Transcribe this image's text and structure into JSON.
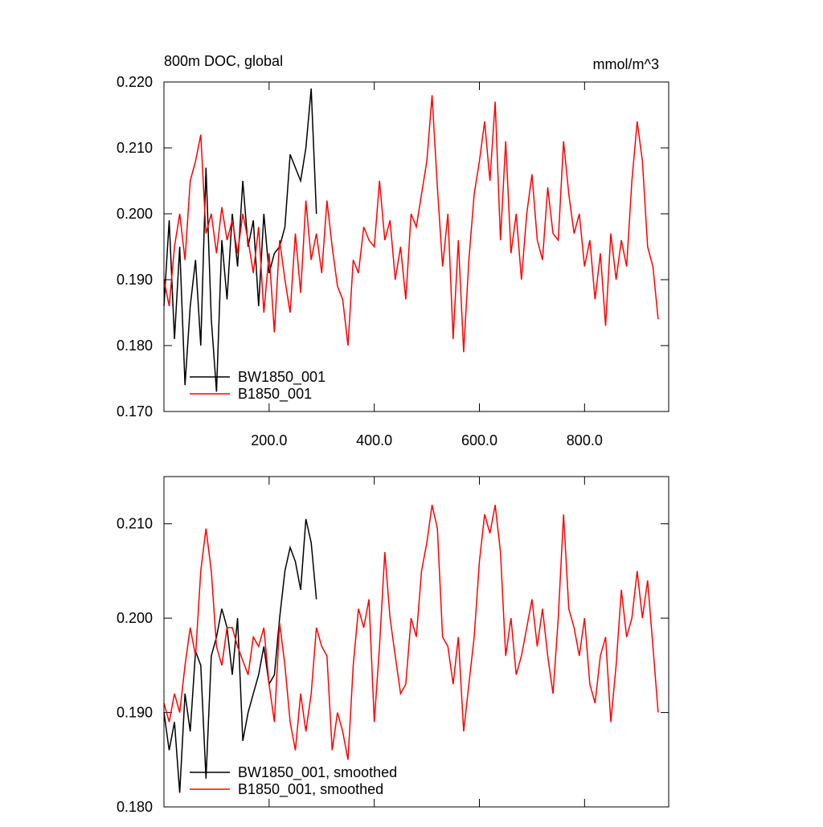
{
  "chart_data": [
    {
      "type": "line",
      "title": "800m DOC, global",
      "units": "mmol/m^3",
      "xlim": [
        0,
        960
      ],
      "xticks": [
        {
          "value": 200,
          "label": "200.0"
        },
        {
          "value": 400,
          "label": "400.0"
        },
        {
          "value": 600,
          "label": "600.0"
        },
        {
          "value": 800,
          "label": "800.0"
        }
      ],
      "ylim": [
        0.17,
        0.22
      ],
      "yticks": [
        {
          "value": 0.17,
          "label": "0.170"
        },
        {
          "value": 0.18,
          "label": "0.180"
        },
        {
          "value": 0.19,
          "label": "0.190"
        },
        {
          "value": 0.2,
          "label": "0.200"
        },
        {
          "value": 0.21,
          "label": "0.210"
        },
        {
          "value": 0.22,
          "label": "0.220"
        }
      ],
      "series": [
        {
          "name": "BW1850_001",
          "color": "#000000",
          "x": [
            0,
            10,
            20,
            30,
            40,
            50,
            60,
            70,
            80,
            90,
            100,
            110,
            120,
            130,
            140,
            150,
            160,
            170,
            180,
            190,
            200,
            210,
            220,
            230,
            240,
            250,
            260,
            270,
            280,
            290
          ],
          "values": [
            0.186,
            0.199,
            0.181,
            0.195,
            0.174,
            0.186,
            0.193,
            0.18,
            0.207,
            0.184,
            0.173,
            0.196,
            0.187,
            0.2,
            0.192,
            0.205,
            0.195,
            0.199,
            0.186,
            0.2,
            0.191,
            0.194,
            0.195,
            0.198,
            0.209,
            0.207,
            0.205,
            0.21,
            0.219,
            0.2
          ]
        },
        {
          "name": "B1850_001",
          "color": "#ff0000",
          "x": [
            0,
            10,
            20,
            30,
            40,
            50,
            60,
            70,
            80,
            90,
            100,
            110,
            120,
            130,
            140,
            150,
            160,
            170,
            180,
            190,
            200,
            210,
            220,
            230,
            240,
            250,
            260,
            270,
            280,
            290,
            300,
            310,
            320,
            330,
            340,
            350,
            360,
            370,
            380,
            390,
            400,
            410,
            420,
            430,
            440,
            450,
            460,
            470,
            480,
            490,
            500,
            510,
            520,
            530,
            540,
            550,
            560,
            570,
            580,
            590,
            600,
            610,
            620,
            630,
            640,
            650,
            660,
            670,
            680,
            690,
            700,
            710,
            720,
            730,
            740,
            750,
            760,
            770,
            780,
            790,
            800,
            810,
            820,
            830,
            840,
            850,
            860,
            870,
            880,
            890,
            900,
            910,
            920,
            930,
            940
          ],
          "values": [
            0.19,
            0.186,
            0.195,
            0.2,
            0.193,
            0.205,
            0.208,
            0.212,
            0.197,
            0.2,
            0.194,
            0.201,
            0.196,
            0.199,
            0.194,
            0.2,
            0.196,
            0.191,
            0.198,
            0.185,
            0.194,
            0.182,
            0.196,
            0.19,
            0.185,
            0.197,
            0.188,
            0.202,
            0.193,
            0.197,
            0.191,
            0.202,
            0.195,
            0.189,
            0.187,
            0.18,
            0.193,
            0.191,
            0.198,
            0.196,
            0.195,
            0.205,
            0.196,
            0.199,
            0.19,
            0.195,
            0.187,
            0.2,
            0.198,
            0.203,
            0.208,
            0.218,
            0.204,
            0.192,
            0.2,
            0.181,
            0.196,
            0.179,
            0.193,
            0.203,
            0.208,
            0.214,
            0.205,
            0.217,
            0.196,
            0.211,
            0.194,
            0.2,
            0.19,
            0.2,
            0.206,
            0.196,
            0.193,
            0.204,
            0.197,
            0.196,
            0.211,
            0.203,
            0.197,
            0.2,
            0.192,
            0.196,
            0.187,
            0.194,
            0.183,
            0.197,
            0.19,
            0.196,
            0.192,
            0.205,
            0.214,
            0.208,
            0.195,
            0.192,
            0.184
          ]
        }
      ]
    },
    {
      "type": "line",
      "xlim": [
        0,
        960
      ],
      "xticks": [
        200,
        400,
        600,
        800
      ],
      "ylim": [
        0.18,
        0.215
      ],
      "yticks": [
        {
          "value": 0.18,
          "label": "0.180"
        },
        {
          "value": 0.19,
          "label": "0.190"
        },
        {
          "value": 0.2,
          "label": "0.200"
        },
        {
          "value": 0.21,
          "label": "0.210"
        }
      ],
      "series": [
        {
          "name": "BW1850_001, smoothed",
          "color": "#000000",
          "x": [
            0,
            10,
            20,
            30,
            40,
            50,
            60,
            70,
            80,
            90,
            100,
            110,
            120,
            130,
            140,
            150,
            160,
            170,
            180,
            190,
            200,
            210,
            220,
            230,
            240,
            250,
            260,
            270,
            280,
            290
          ],
          "values": [
            0.19,
            0.186,
            0.189,
            0.1815,
            0.192,
            0.188,
            0.1965,
            0.195,
            0.183,
            0.196,
            0.198,
            0.201,
            0.199,
            0.194,
            0.2,
            0.187,
            0.19,
            0.192,
            0.194,
            0.197,
            0.193,
            0.194,
            0.2,
            0.205,
            0.2075,
            0.206,
            0.203,
            0.2105,
            0.208,
            0.202
          ]
        },
        {
          "name": "B1850_001, smoothed",
          "color": "#ff0000",
          "x": [
            0,
            10,
            20,
            30,
            40,
            50,
            60,
            70,
            80,
            90,
            100,
            110,
            120,
            130,
            140,
            150,
            160,
            170,
            180,
            190,
            200,
            210,
            220,
            230,
            240,
            250,
            260,
            270,
            280,
            290,
            300,
            310,
            320,
            330,
            340,
            350,
            360,
            370,
            380,
            390,
            400,
            410,
            420,
            430,
            440,
            450,
            460,
            470,
            480,
            490,
            500,
            510,
            520,
            530,
            540,
            550,
            560,
            570,
            580,
            590,
            600,
            610,
            620,
            630,
            640,
            650,
            660,
            670,
            680,
            690,
            700,
            710,
            720,
            730,
            740,
            750,
            760,
            770,
            780,
            790,
            800,
            810,
            820,
            830,
            840,
            850,
            860,
            870,
            880,
            890,
            900,
            910,
            920,
            930,
            940
          ],
          "values": [
            0.191,
            0.189,
            0.192,
            0.19,
            0.195,
            0.199,
            0.196,
            0.205,
            0.2095,
            0.205,
            0.197,
            0.195,
            0.199,
            0.199,
            0.197,
            0.1955,
            0.194,
            0.198,
            0.197,
            0.199,
            0.193,
            0.189,
            0.1995,
            0.195,
            0.189,
            0.186,
            0.192,
            0.188,
            0.192,
            0.199,
            0.197,
            0.196,
            0.186,
            0.19,
            0.188,
            0.185,
            0.195,
            0.201,
            0.199,
            0.202,
            0.189,
            0.197,
            0.207,
            0.2,
            0.196,
            0.192,
            0.193,
            0.2,
            0.198,
            0.205,
            0.208,
            0.212,
            0.2095,
            0.198,
            0.197,
            0.193,
            0.198,
            0.188,
            0.193,
            0.198,
            0.206,
            0.211,
            0.209,
            0.212,
            0.207,
            0.196,
            0.2,
            0.194,
            0.196,
            0.199,
            0.202,
            0.197,
            0.201,
            0.196,
            0.192,
            0.2,
            0.211,
            0.201,
            0.199,
            0.196,
            0.2,
            0.193,
            0.191,
            0.196,
            0.198,
            0.189,
            0.195,
            0.203,
            0.198,
            0.2,
            0.205,
            0.2,
            0.204,
            0.197,
            0.19
          ]
        }
      ]
    }
  ]
}
